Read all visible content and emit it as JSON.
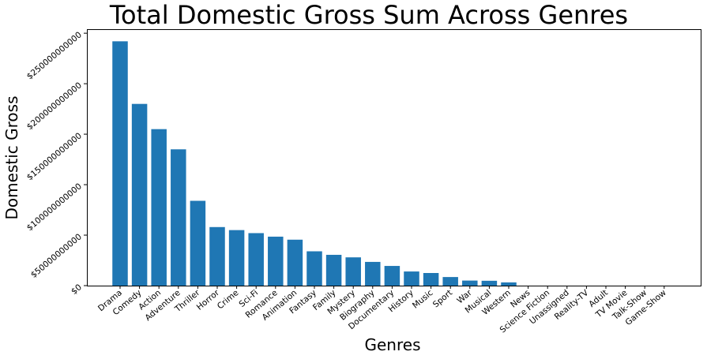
{
  "chart_data": {
    "type": "bar",
    "title": "Total Domestic Gross Sum Across Genres",
    "xlabel": "Genres",
    "ylabel": "Domestic Gross",
    "categories": [
      "Drama",
      "Comedy",
      "Action",
      "Adventure",
      "Thriller",
      "Horror",
      "Crime",
      "Sci-Fi",
      "Romance",
      "Animation",
      "Fantasy",
      "Family",
      "Mystery",
      "Biography",
      "Documentary",
      "History",
      "Music",
      "Sport",
      "War",
      "Musical",
      "Western",
      "News",
      "Science Fiction",
      "Unassigned",
      "Reality-TV",
      "Adult",
      "TV Movie",
      "Talk-Show",
      "Game-Show"
    ],
    "values": [
      242000000000,
      180000000000,
      155000000000,
      135000000000,
      84000000000,
      58000000000,
      55000000000,
      52000000000,
      48500000000,
      45500000000,
      34000000000,
      30500000000,
      28000000000,
      23500000000,
      19500000000,
      14000000000,
      12500000000,
      8500000000,
      5000000000,
      4800000000,
      3200000000,
      0,
      0,
      0,
      0,
      0,
      0,
      0,
      0
    ],
    "yticks": [
      0,
      50000000000,
      100000000000,
      150000000000,
      200000000000,
      250000000000
    ],
    "ytick_labels": [
      "$0",
      "$50000000000",
      "$100000000000",
      "$150000000000",
      "$200000000000",
      "$250000000000"
    ],
    "ylim": [
      0,
      254000000000
    ],
    "bar_color": "#1f77b4",
    "grid": false
  }
}
